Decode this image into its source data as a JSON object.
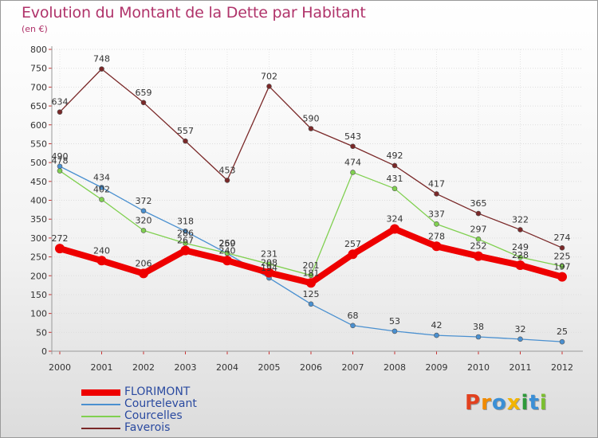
{
  "header": {
    "title": "Evolution du Montant de la Dette par Habitant",
    "subtitle": "(en €)"
  },
  "logo": {
    "text": "Proxiti",
    "letters": [
      {
        "char": "P",
        "color": "#e2411f"
      },
      {
        "char": "r",
        "color": "#f08a00"
      },
      {
        "char": "o",
        "color": "#3a8fd6"
      },
      {
        "char": "x",
        "color": "#f2b400"
      },
      {
        "char": "i",
        "color": "#2e9a3a"
      },
      {
        "char": "t",
        "color": "#3a8fd6"
      },
      {
        "char": "i",
        "color": "#7bbf2f"
      }
    ]
  },
  "chart_data": {
    "type": "line",
    "title": "Evolution du Montant de la Dette par Habitant",
    "subtitle": "(en €)",
    "categories": [
      "2000",
      "2001",
      "2002",
      "2003",
      "2004",
      "2005",
      "2006",
      "2007",
      "2008",
      "2009",
      "2010",
      "2011",
      "2012"
    ],
    "ylim": [
      0,
      800
    ],
    "yticks": [
      0,
      50,
      100,
      150,
      200,
      250,
      300,
      350,
      400,
      450,
      500,
      550,
      600,
      650,
      700,
      750,
      800
    ],
    "grid": true,
    "legend_position": "bottom-left",
    "series": [
      {
        "name": "FLORIMONT",
        "color": "#ee0000",
        "emphasis": true,
        "values": [
          272,
          240,
          206,
          267,
          240,
          208,
          181,
          257,
          324,
          278,
          252,
          228,
          197
        ],
        "labels": [
          "272",
          "240",
          "206",
          "267",
          "240",
          "208",
          "181",
          "257",
          "324",
          "278",
          "252",
          "228",
          "197"
        ]
      },
      {
        "name": "Courtelevant",
        "color": "#4a90d0",
        "emphasis": false,
        "values": [
          490,
          434,
          372,
          318,
          259,
          194,
          125,
          68,
          53,
          42,
          38,
          32,
          25
        ],
        "labels": [
          "490",
          "434",
          "372",
          "318",
          "259",
          "194",
          "125",
          "68",
          "53",
          "42",
          "38",
          "32",
          "25"
        ]
      },
      {
        "name": "Courcelles",
        "color": "#80d050",
        "emphasis": false,
        "values": [
          478,
          402,
          320,
          286,
          260,
          231,
          201,
          474,
          431,
          337,
          297,
          249,
          225
        ],
        "labels": [
          "478",
          "402",
          "320",
          "286",
          "260",
          "231",
          "201",
          "474",
          "431",
          "337",
          "297",
          "249",
          "225"
        ]
      },
      {
        "name": "Faverois",
        "color": "#7a2828",
        "emphasis": false,
        "values": [
          634,
          748,
          659,
          557,
          453,
          702,
          590,
          543,
          492,
          417,
          365,
          322,
          274
        ],
        "labels": [
          "634",
          "748",
          "659",
          "557",
          "453",
          "702",
          "590",
          "543",
          "492",
          "417",
          "365",
          "322",
          "274"
        ]
      }
    ]
  }
}
